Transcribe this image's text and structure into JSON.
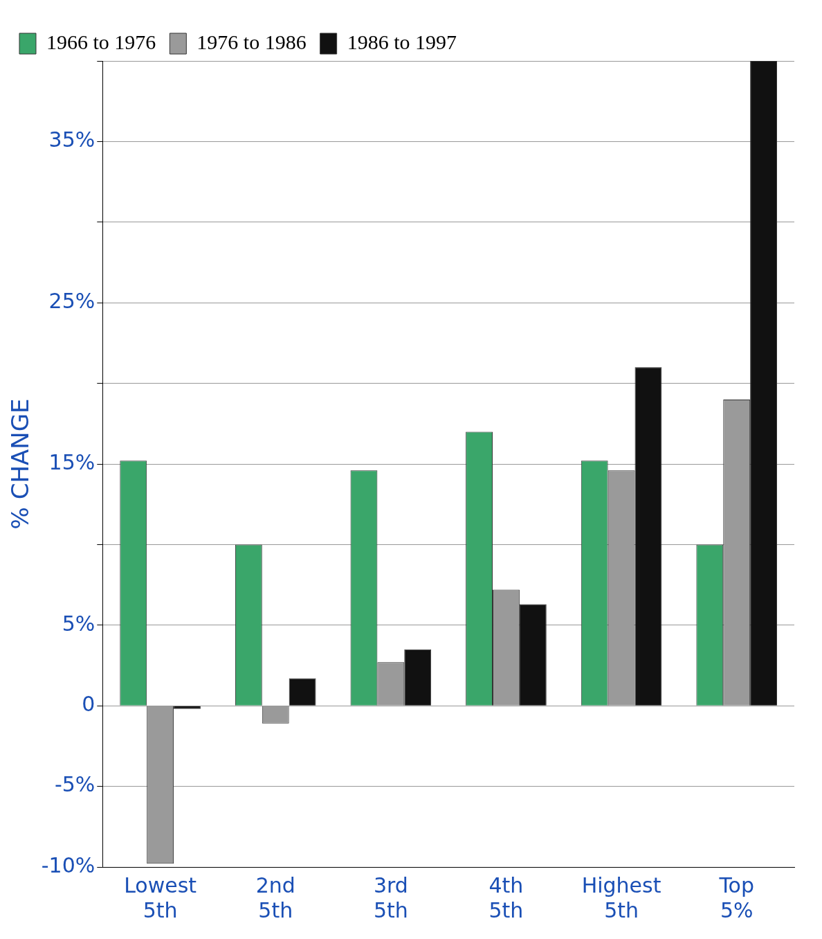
{
  "chart_data": {
    "type": "bar",
    "ylabel": "% CHANGE",
    "categories": [
      "Lowest 5th",
      "2nd 5th",
      "3rd 5th",
      "4th 5th",
      "Highest 5th",
      "Top 5%"
    ],
    "series": [
      {
        "name": "1966 to 1976",
        "color": "#3aa66a",
        "values": [
          15.2,
          10,
          14.6,
          17,
          15.2,
          10
        ]
      },
      {
        "name": "1976 to 1986",
        "color": "#9a9a9a",
        "values": [
          -9.8,
          -1.1,
          2.7,
          7.2,
          14.6,
          19
        ]
      },
      {
        "name": "1986 to 1997",
        "color": "#111111",
        "values": [
          -0.2,
          1.7,
          3.5,
          6.3,
          21,
          40
        ]
      }
    ],
    "ylim": [
      -10,
      40
    ],
    "yticks": [
      {
        "value": -10,
        "label": "-10%"
      },
      {
        "value": -5,
        "label": "-5%"
      },
      0,
      {
        "value": 5,
        "label": "5%"
      },
      {
        "value": 10,
        "label": null
      },
      {
        "value": 15,
        "label": "15%"
      },
      {
        "value": 20,
        "label": null
      },
      {
        "value": 25,
        "label": "25%"
      },
      {
        "value": 30,
        "label": null
      },
      {
        "value": 35,
        "label": "35%"
      },
      {
        "value": 40,
        "label": null
      }
    ],
    "grid": "y",
    "legend": "top left"
  }
}
